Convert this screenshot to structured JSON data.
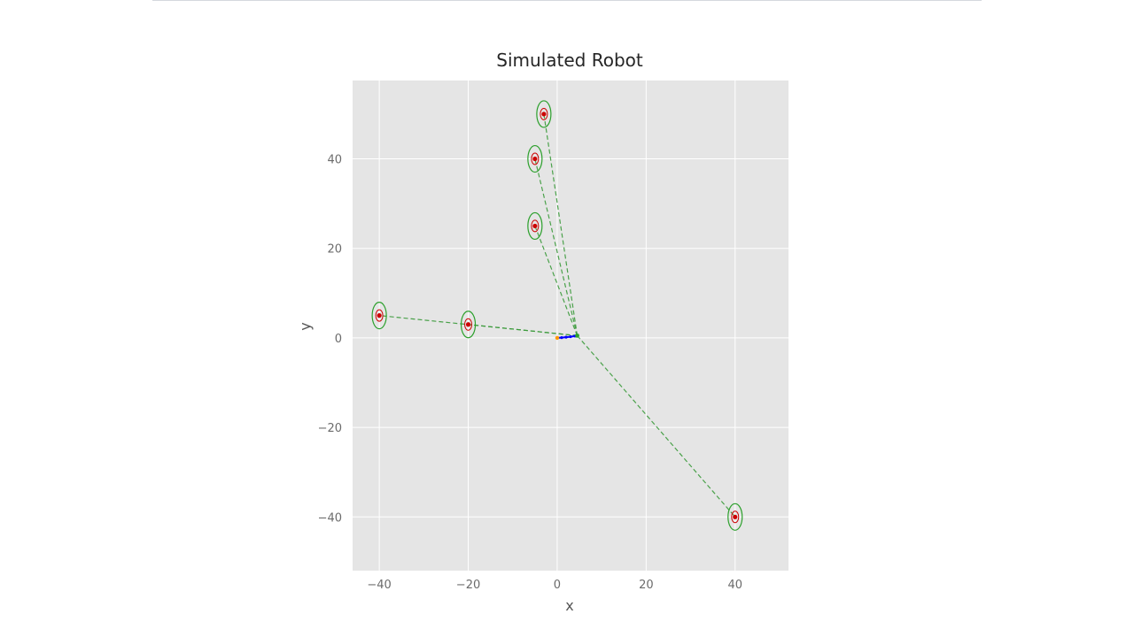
{
  "chart_data": {
    "type": "scatter",
    "title": "Simulated Robot",
    "xlabel": "x",
    "ylabel": "y",
    "xlim": [
      -46,
      52
    ],
    "ylim": [
      -52,
      57.5
    ],
    "grid": true,
    "xticks": [
      -40,
      -20,
      0,
      20,
      40
    ],
    "yticks": [
      -40,
      -20,
      0,
      20,
      40
    ],
    "xtick_labels": [
      "−40",
      "−20",
      "0",
      "20",
      "40"
    ],
    "ytick_labels": [
      "−40",
      "−20",
      "0",
      "20",
      "40"
    ],
    "robot": {
      "x": 4.5,
      "y": 0.5
    },
    "path": {
      "x": [
        0,
        1,
        2,
        3,
        4,
        4.5
      ],
      "y": [
        0,
        0.05,
        0.15,
        0.25,
        0.4,
        0.5
      ]
    },
    "landmarks": {
      "x": [
        -40,
        -20,
        -5,
        -5,
        -3,
        40
      ],
      "y": [
        5,
        3,
        25,
        40,
        50,
        -40
      ]
    },
    "colors": {
      "background": "#e5e5e5",
      "grid": "#ffffff",
      "landmark": "#cc0000",
      "ellipse": "#2ca02c",
      "measurement_line": "#3a9a3a",
      "path": "#0000ff",
      "start": "#ff9900"
    }
  }
}
